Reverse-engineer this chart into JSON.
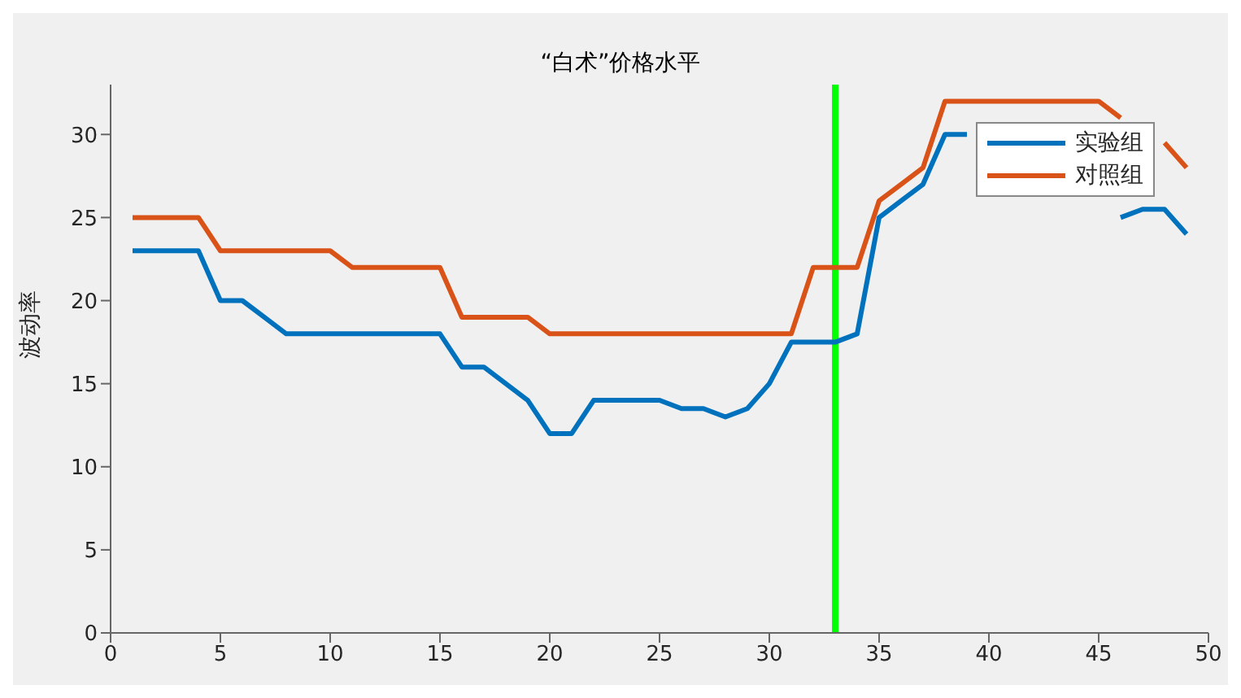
{
  "chart_data": {
    "type": "line",
    "title": "“白术”价格水平",
    "ylabel": "波动率",
    "x": [
      1,
      2,
      3,
      4,
      5,
      6,
      7,
      8,
      9,
      10,
      11,
      12,
      13,
      14,
      15,
      16,
      17,
      18,
      19,
      20,
      21,
      22,
      23,
      24,
      25,
      26,
      27,
      28,
      29,
      30,
      31,
      32,
      33,
      34,
      35,
      36,
      37,
      38,
      39,
      40,
      41,
      42,
      43,
      44,
      45,
      46,
      47,
      48,
      49
    ],
    "series": [
      {
        "name": "实验组",
        "color": "#0072bd",
        "values": [
          23,
          23,
          23,
          23,
          20,
          20,
          19,
          18,
          18,
          18,
          18,
          18,
          18,
          18,
          18,
          16,
          16,
          15,
          14,
          12,
          12,
          14,
          14,
          14,
          14,
          13.5,
          13.5,
          13,
          13.5,
          15,
          17.5,
          17.5,
          17.5,
          18,
          25,
          26,
          27,
          30,
          30,
          null,
          null,
          null,
          null,
          null,
          null,
          25,
          25.5,
          25.5,
          24
        ]
      },
      {
        "name": "对照组",
        "color": "#d95319",
        "values": [
          25,
          25,
          25,
          25,
          23,
          23,
          23,
          23,
          23,
          23,
          22,
          22,
          22,
          22,
          22,
          19,
          19,
          19,
          19,
          18,
          18,
          18,
          18,
          18,
          18,
          18,
          18,
          18,
          18,
          18,
          18,
          22,
          22,
          22,
          26,
          27,
          28,
          32,
          32,
          32,
          32,
          32,
          32,
          32,
          32,
          31,
          null,
          29.5,
          28
        ]
      }
    ],
    "xlim": [
      0,
      50
    ],
    "xticks": [
      0,
      5,
      10,
      15,
      20,
      25,
      30,
      35,
      40,
      45,
      50
    ],
    "ylim": [
      0,
      33
    ],
    "yticks": [
      0,
      5,
      10,
      15,
      20,
      25,
      30
    ],
    "ref_lines": [
      {
        "axis": "x",
        "value": 33,
        "color": "#00ff00"
      }
    ],
    "legend": "top right",
    "marker": "none",
    "line_style": "solid"
  }
}
